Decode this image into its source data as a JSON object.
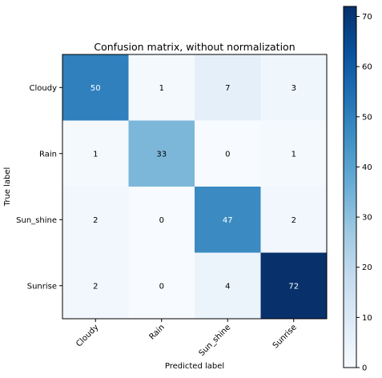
{
  "chart_data": {
    "type": "heatmap",
    "title": "Confusion matrix, without normalization",
    "xlabel": "Predicted label",
    "ylabel": "True label",
    "x_categories": [
      "Cloudy",
      "Rain",
      "Sun_shine",
      "Sunrise"
    ],
    "y_categories": [
      "Cloudy",
      "Rain",
      "Sun_shine",
      "Sunrise"
    ],
    "values": [
      [
        50,
        1,
        7,
        3
      ],
      [
        1,
        33,
        0,
        1
      ],
      [
        2,
        0,
        47,
        2
      ],
      [
        2,
        0,
        4,
        72
      ]
    ],
    "colormap": "Blues",
    "color_range": [
      0,
      72
    ],
    "colorbar_ticks": [
      0,
      10,
      20,
      30,
      40,
      50,
      60,
      70
    ],
    "colorbar_tick_labels": [
      "0",
      "10",
      "20",
      "30",
      "40",
      "50",
      "60",
      "70"
    ]
  }
}
